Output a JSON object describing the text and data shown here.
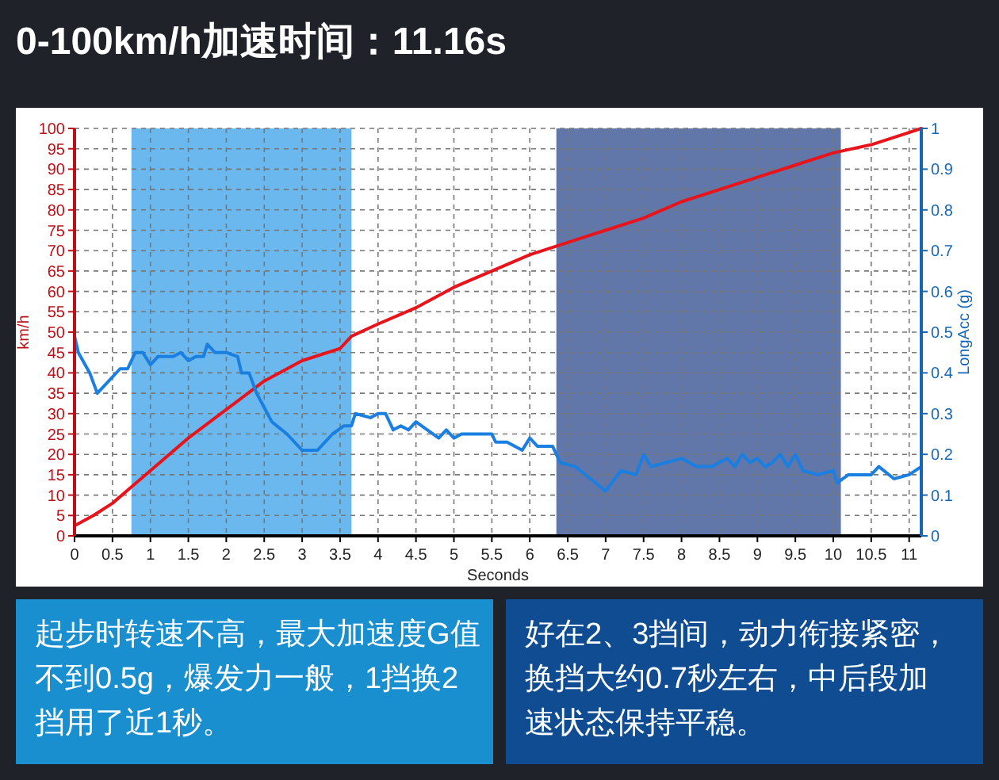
{
  "chart_data": {
    "type": "line",
    "title": "0-100km/h加速时间：11.16s",
    "xlabel": "Seconds",
    "ylabel": "km/h",
    "y2label": "LongAcc (g)",
    "xlim": [
      0,
      11.16
    ],
    "xticks": [
      0,
      0.5,
      1,
      1.5,
      2,
      2.5,
      3,
      3.5,
      4,
      4.5,
      5,
      5.5,
      6,
      6.5,
      7,
      7.5,
      8,
      8.5,
      9,
      9.5,
      10,
      10.5,
      11
    ],
    "ylim": [
      0,
      100
    ],
    "yticks": [
      0,
      5,
      10,
      15,
      20,
      25,
      30,
      35,
      40,
      45,
      50,
      55,
      60,
      65,
      70,
      75,
      80,
      85,
      90,
      95,
      100
    ],
    "y2lim": [
      0,
      1
    ],
    "y2ticks": [
      0,
      0.1,
      0.2,
      0.3,
      0.4,
      0.5,
      0.6,
      0.7,
      0.8,
      0.9,
      1
    ],
    "grid": true,
    "line_style": "solid",
    "bands": [
      {
        "axis": "x",
        "from": 0.75,
        "to": 3.65,
        "color": "#3aa0e8"
      },
      {
        "axis": "x",
        "from": 6.35,
        "to": 10.1,
        "color": "#2c4a8c"
      }
    ],
    "series": [
      {
        "color": "#e8141c",
        "x": [
          0,
          0.25,
          0.5,
          0.75,
          1,
          1.5,
          2,
          2.5,
          3,
          3.5,
          3.65,
          4,
          4.5,
          5,
          5.5,
          6,
          6.5,
          7,
          7.5,
          8,
          8.5,
          9,
          9.5,
          10,
          10.5,
          11,
          11.16
        ],
        "values": [
          2.5,
          5,
          8,
          12,
          16,
          24,
          31,
          38,
          43,
          46,
          49,
          52,
          56,
          61,
          65,
          69,
          72,
          75,
          78,
          82,
          85,
          88,
          91,
          94,
          96,
          99,
          100
        ]
      },
      {
        "color": "#1a7fe0",
        "axis": "y2",
        "x": [
          0,
          0.05,
          0.2,
          0.3,
          0.4,
          0.6,
          0.7,
          0.8,
          0.9,
          1,
          1.1,
          1.3,
          1.4,
          1.5,
          1.6,
          1.7,
          1.75,
          1.85,
          2,
          2.15,
          2.2,
          2.3,
          2.4,
          2.6,
          2.8,
          3,
          3.2,
          3.4,
          3.55,
          3.65,
          3.7,
          3.9,
          4,
          4.1,
          4.2,
          4.3,
          4.4,
          4.5,
          4.8,
          4.9,
          5,
          5.1,
          5.5,
          5.55,
          5.7,
          5.9,
          6,
          6.1,
          6.3,
          6.4,
          6.6,
          6.8,
          7,
          7.2,
          7.4,
          7.5,
          7.6,
          7.8,
          8,
          8.2,
          8.4,
          8.6,
          8.7,
          8.8,
          8.9,
          9,
          9.1,
          9.2,
          9.3,
          9.4,
          9.5,
          9.6,
          9.8,
          10,
          10.05,
          10.2,
          10.5,
          10.6,
          10.8,
          11,
          11.16
        ],
        "values": [
          0.49,
          0.45,
          0.4,
          0.35,
          0.37,
          0.41,
          0.41,
          0.45,
          0.45,
          0.42,
          0.44,
          0.44,
          0.45,
          0.43,
          0.44,
          0.44,
          0.47,
          0.45,
          0.45,
          0.44,
          0.4,
          0.4,
          0.35,
          0.28,
          0.25,
          0.21,
          0.21,
          0.25,
          0.27,
          0.27,
          0.3,
          0.29,
          0.3,
          0.3,
          0.26,
          0.27,
          0.26,
          0.28,
          0.24,
          0.26,
          0.24,
          0.25,
          0.25,
          0.23,
          0.23,
          0.21,
          0.24,
          0.22,
          0.22,
          0.18,
          0.17,
          0.14,
          0.11,
          0.16,
          0.15,
          0.2,
          0.17,
          0.18,
          0.19,
          0.17,
          0.17,
          0.19,
          0.17,
          0.2,
          0.18,
          0.19,
          0.17,
          0.18,
          0.2,
          0.17,
          0.2,
          0.16,
          0.15,
          0.16,
          0.13,
          0.15,
          0.15,
          0.17,
          0.14,
          0.15,
          0.17
        ]
      }
    ],
    "annotations": [
      "起步时转速不高，最大加速度G值不到0.5g，爆发力一般，1挡换2挡用了近1秒。",
      "好在2、3挡间，动力衔接紧密，换挡大约0.7秒左右，中后段加速状态保持平稳。"
    ]
  }
}
